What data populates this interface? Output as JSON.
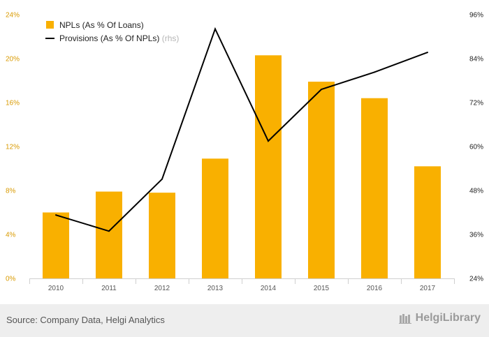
{
  "chart_data": {
    "type": "bar",
    "categories": [
      "2010",
      "2011",
      "2012",
      "2013",
      "2014",
      "2015",
      "2016",
      "2017"
    ],
    "series": [
      {
        "name": "NPLs (As % Of Loans)",
        "type": "bar",
        "axis": "left",
        "color": "#F9B000",
        "values": [
          6.0,
          7.9,
          7.8,
          10.9,
          20.3,
          17.9,
          16.4,
          10.2
        ]
      },
      {
        "name": "Provisions (As % Of NPLs)",
        "type": "line",
        "axis": "right",
        "color": "#000000",
        "values": [
          41.3,
          36.9,
          51.1,
          92.1,
          61.5,
          75.6,
          80.3,
          85.7
        ]
      }
    ],
    "legend_note": "(rhs)",
    "y_left": {
      "lim": [
        0,
        24
      ],
      "ticks": [
        0,
        4,
        8,
        12,
        16,
        20,
        24
      ],
      "tick_labels": [
        "0%",
        "4%",
        "8%",
        "12%",
        "16%",
        "20%",
        "24%"
      ]
    },
    "y_right": {
      "lim": [
        24,
        96
      ],
      "ticks": [
        24,
        36,
        48,
        60,
        72,
        84,
        96
      ],
      "tick_labels": [
        "24%",
        "36%",
        "48%",
        "60%",
        "72%",
        "84%",
        "96%"
      ]
    },
    "grid": false,
    "legend_position": "top-left"
  },
  "footer": {
    "source": "Source: Company Data, Helgi Analytics",
    "brand": "HelgiLibrary"
  },
  "colors": {
    "bar": "#F9B000",
    "line": "#000000",
    "footer_bg": "#EEEEEE"
  }
}
